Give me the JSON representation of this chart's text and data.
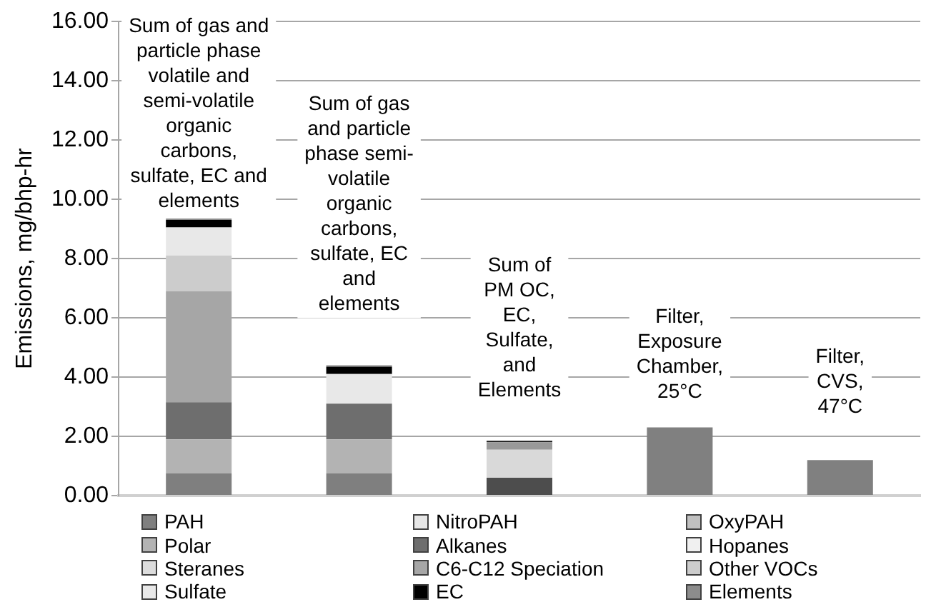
{
  "chart_data": {
    "type": "bar",
    "categories": [
      "Sum of gas and particle phase volatile and semi-volatile organic carbons, sulfate, EC and elements",
      "Sum of gas and particle phase semi-volatile organic carbons, sulfate, EC and elements",
      "Sum of PM OC, EC, Sulfate, and Elements",
      "Filter, Exposure Chamber, 25°C",
      "Filter, CVS, 47°C"
    ],
    "ylabel": "Emissions, mg/bhp-hr",
    "ylim": [
      0,
      16
    ],
    "yticks": [
      {
        "value": 0,
        "label": "0.00"
      },
      {
        "value": 2,
        "label": "2.00"
      },
      {
        "value": 4,
        "label": "4.00"
      },
      {
        "value": 6,
        "label": "6.00"
      },
      {
        "value": 8,
        "label": "8.00"
      },
      {
        "value": 10,
        "label": "10.00"
      },
      {
        "value": 12,
        "label": "12.00"
      },
      {
        "value": 14,
        "label": "14.00"
      },
      {
        "value": 16,
        "label": "16.00"
      }
    ],
    "stacked": true,
    "grid": "y",
    "legend": "bottom",
    "series": [
      {
        "name": "PAH",
        "color": "#7f7f7f",
        "values": [
          0.75,
          0.75,
          null,
          null,
          null
        ]
      },
      {
        "name": "NitroPAH",
        "color": "#e6e6e6",
        "values": [
          null,
          null,
          null,
          null,
          null
        ]
      },
      {
        "name": "OxyPAH",
        "color": "#c0c0c0",
        "values": [
          null,
          null,
          null,
          null,
          null
        ]
      },
      {
        "name": "Polar",
        "color": "#b3b3b3",
        "values": [
          1.15,
          1.15,
          null,
          null,
          null
        ]
      },
      {
        "name": "Alkanes",
        "color": "#6e6e6e",
        "values": [
          1.25,
          1.2,
          null,
          null,
          null
        ]
      },
      {
        "name": "Hopanes",
        "color": "#f0f0f0",
        "values": [
          null,
          null,
          null,
          null,
          null
        ]
      },
      {
        "name": "Steranes",
        "color": "#dcdcdc",
        "values": [
          null,
          null,
          null,
          null,
          null
        ]
      },
      {
        "name": "C6-C12 Speciation",
        "color": "#a6a6a6",
        "values": [
          3.75,
          null,
          null,
          null,
          null
        ]
      },
      {
        "name": "Other VOCs",
        "color": "#cccccc",
        "values": [
          1.2,
          null,
          null,
          null,
          null
        ]
      },
      {
        "name": "Sulfate",
        "color": "#e8e8e8",
        "values": [
          0.95,
          1.0,
          null,
          null,
          null
        ]
      },
      {
        "name": "EC",
        "color": "#000000",
        "values": [
          0.25,
          0.25,
          null,
          null,
          null
        ]
      },
      {
        "name": "Elements",
        "color": "#8c8c8c",
        "values": [
          0.05,
          0.05,
          null,
          null,
          null
        ]
      },
      {
        "color": "#4d4d4d",
        "values": [
          null,
          null,
          0.6,
          null,
          null
        ]
      },
      {
        "color": "#d9d9d9",
        "values": [
          null,
          null,
          0.95,
          null,
          null
        ]
      },
      {
        "color": "#999999",
        "values": [
          null,
          null,
          0.25,
          null,
          null
        ]
      },
      {
        "color": "#1a1a1a",
        "values": [
          null,
          null,
          0.05,
          null,
          null
        ]
      },
      {
        "color": "#808080",
        "values": [
          null,
          null,
          null,
          2.3,
          1.2
        ]
      }
    ]
  }
}
